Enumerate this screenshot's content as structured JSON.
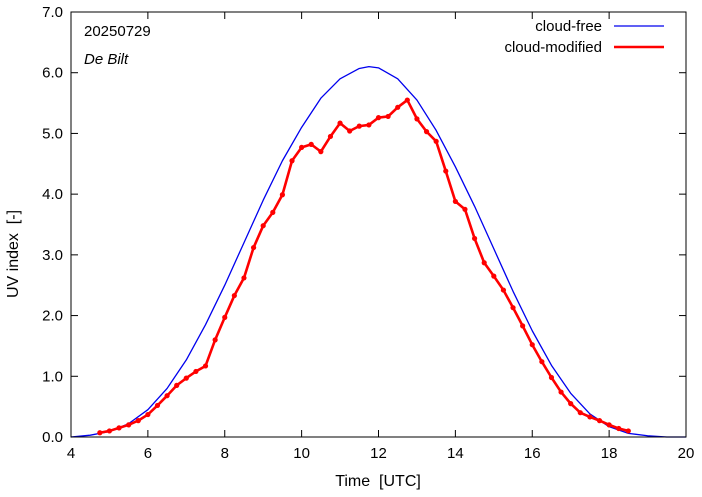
{
  "chart_data": {
    "type": "line",
    "annotations": {
      "date": "20250729",
      "location": "De Bilt"
    },
    "xlabel": "Time  [UTC]",
    "ylabel": "UV index  [-]",
    "xlim": [
      4,
      20
    ],
    "ylim": [
      0,
      7
    ],
    "x_ticks": [
      "4",
      "6",
      "8",
      "10",
      "12",
      "14",
      "16",
      "18",
      "20"
    ],
    "x_tick_values": [
      4,
      6,
      8,
      10,
      12,
      14,
      16,
      18,
      20
    ],
    "y_ticks": [
      "0.0",
      "1.0",
      "2.0",
      "3.0",
      "4.0",
      "5.0",
      "6.0",
      "7.0"
    ],
    "y_tick_values": [
      0,
      1,
      2,
      3,
      4,
      5,
      6,
      7
    ],
    "grid": false,
    "legend_position": "top-right",
    "series": [
      {
        "name": "cloud-free",
        "color": "#0000ee",
        "markers": false,
        "points": [
          [
            4.0,
            0.0
          ],
          [
            4.5,
            0.03
          ],
          [
            5.0,
            0.09
          ],
          [
            5.5,
            0.22
          ],
          [
            6.0,
            0.45
          ],
          [
            6.5,
            0.8
          ],
          [
            7.0,
            1.27
          ],
          [
            7.5,
            1.85
          ],
          [
            8.0,
            2.5
          ],
          [
            8.5,
            3.2
          ],
          [
            9.0,
            3.9
          ],
          [
            9.5,
            4.55
          ],
          [
            10.0,
            5.1
          ],
          [
            10.5,
            5.58
          ],
          [
            11.0,
            5.9
          ],
          [
            11.5,
            6.07
          ],
          [
            11.75,
            6.1
          ],
          [
            12.0,
            6.08
          ],
          [
            12.5,
            5.9
          ],
          [
            13.0,
            5.55
          ],
          [
            13.5,
            5.05
          ],
          [
            14.0,
            4.45
          ],
          [
            14.5,
            3.8
          ],
          [
            15.0,
            3.1
          ],
          [
            15.5,
            2.4
          ],
          [
            16.0,
            1.75
          ],
          [
            16.5,
            1.18
          ],
          [
            17.0,
            0.72
          ],
          [
            17.5,
            0.38
          ],
          [
            18.0,
            0.17
          ],
          [
            18.5,
            0.06
          ],
          [
            19.0,
            0.02
          ],
          [
            19.5,
            0.0
          ],
          [
            20.0,
            0.0
          ]
        ]
      },
      {
        "name": "cloud-modified",
        "color": "#ff0000",
        "markers": true,
        "points": [
          [
            4.75,
            0.07
          ],
          [
            5.0,
            0.1
          ],
          [
            5.25,
            0.15
          ],
          [
            5.5,
            0.2
          ],
          [
            5.75,
            0.27
          ],
          [
            6.0,
            0.37
          ],
          [
            6.25,
            0.52
          ],
          [
            6.5,
            0.68
          ],
          [
            6.75,
            0.85
          ],
          [
            7.0,
            0.97
          ],
          [
            7.25,
            1.08
          ],
          [
            7.5,
            1.17
          ],
          [
            7.75,
            1.6
          ],
          [
            8.0,
            1.97
          ],
          [
            8.25,
            2.33
          ],
          [
            8.5,
            2.62
          ],
          [
            8.75,
            3.12
          ],
          [
            9.0,
            3.48
          ],
          [
            9.25,
            3.7
          ],
          [
            9.5,
            3.99
          ],
          [
            9.75,
            4.55
          ],
          [
            10.0,
            4.77
          ],
          [
            10.25,
            4.82
          ],
          [
            10.5,
            4.7
          ],
          [
            10.75,
            4.95
          ],
          [
            11.0,
            5.17
          ],
          [
            11.25,
            5.04
          ],
          [
            11.5,
            5.12
          ],
          [
            11.75,
            5.14
          ],
          [
            12.0,
            5.26
          ],
          [
            12.25,
            5.28
          ],
          [
            12.5,
            5.43
          ],
          [
            12.75,
            5.55
          ],
          [
            13.0,
            5.24
          ],
          [
            13.25,
            5.03
          ],
          [
            13.5,
            4.87
          ],
          [
            13.75,
            4.38
          ],
          [
            14.0,
            3.88
          ],
          [
            14.25,
            3.75
          ],
          [
            14.5,
            3.27
          ],
          [
            14.75,
            2.87
          ],
          [
            15.0,
            2.65
          ],
          [
            15.25,
            2.42
          ],
          [
            15.5,
            2.13
          ],
          [
            15.75,
            1.83
          ],
          [
            16.0,
            1.52
          ],
          [
            16.25,
            1.24
          ],
          [
            16.5,
            0.98
          ],
          [
            16.75,
            0.74
          ],
          [
            17.0,
            0.55
          ],
          [
            17.25,
            0.4
          ],
          [
            17.5,
            0.33
          ],
          [
            17.75,
            0.27
          ],
          [
            18.0,
            0.2
          ],
          [
            18.25,
            0.14
          ],
          [
            18.5,
            0.1
          ]
        ]
      }
    ]
  }
}
